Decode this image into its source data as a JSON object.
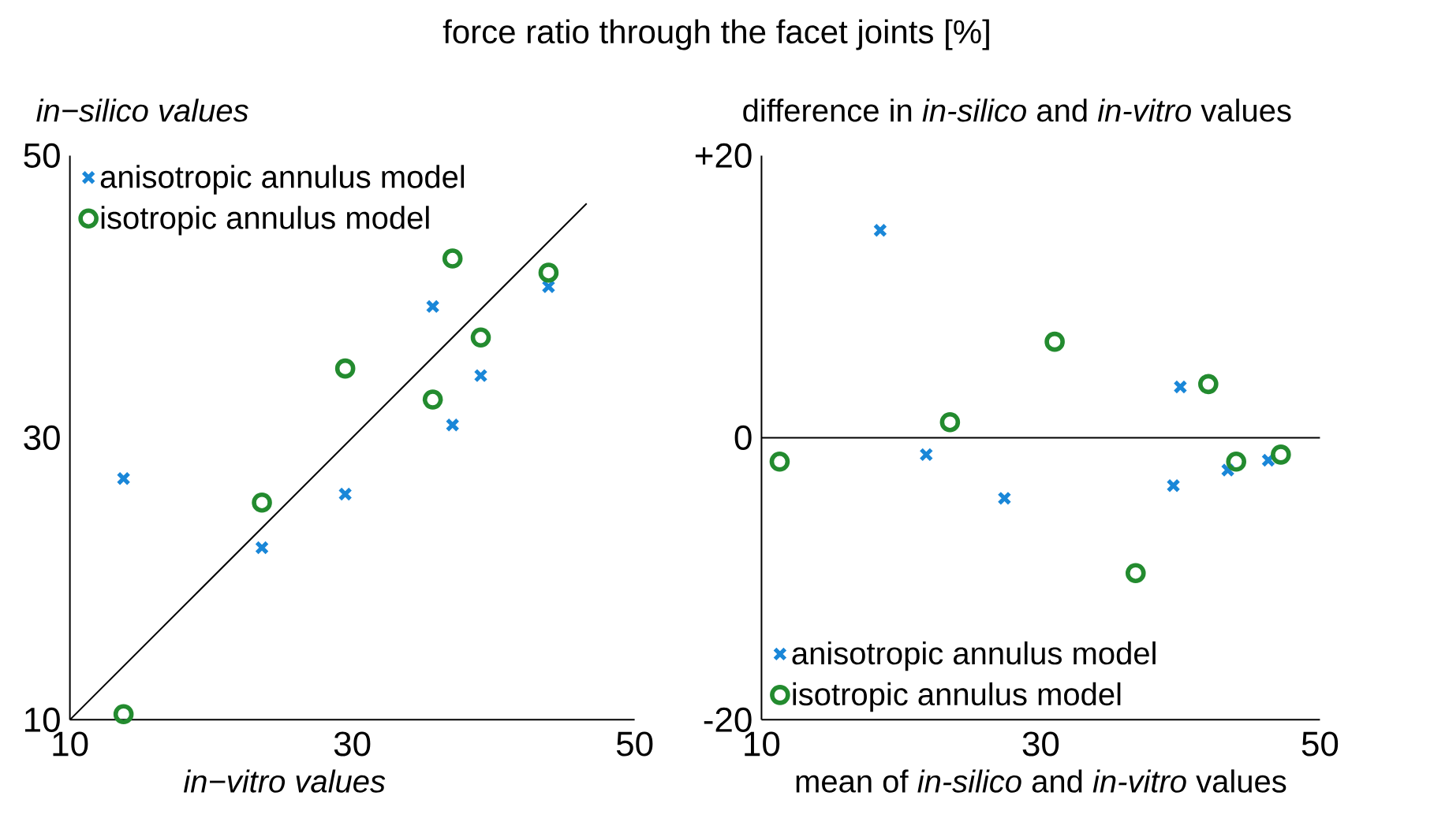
{
  "chart_data": [
    {
      "type": "scatter",
      "title": "force ratio  through the facet joints [%]",
      "ylabel": "*in−silico values*",
      "xlabel": "*in−vitro values*",
      "xlim": [
        10,
        50
      ],
      "ylim": [
        10,
        50
      ],
      "xticks": [
        10,
        30,
        50
      ],
      "yticks": [
        10,
        30,
        50
      ],
      "legend": "top left",
      "series": [
        {
          "name": "anisotropic annulus model",
          "color": "#1a87d8",
          "marker": "cross",
          "x": [
            13.8,
            23.6,
            29.5,
            35.7,
            37.1,
            39.1,
            43.9
          ],
          "values": [
            27.1,
            22.2,
            26.0,
            39.3,
            30.9,
            34.4,
            40.7
          ]
        },
        {
          "name": "isotropic annulus model",
          "color": "#238b2f",
          "marker": "circle",
          "x": [
            13.8,
            23.6,
            29.5,
            35.7,
            37.1,
            39.1,
            43.9
          ],
          "values": [
            10.4,
            25.4,
            34.9,
            32.7,
            42.7,
            37.1,
            41.7
          ]
        },
        {
          "type": "line",
          "color": "#000000",
          "line_style": "solid",
          "x": [
            10,
            46.6
          ],
          "values": [
            10,
            46.6
          ]
        }
      ]
    },
    {
      "type": "scatter",
      "ylabel": "difference in *in-silico* and *in-vitro* values",
      "xlabel": "mean of *in-silico* and *in-vitro* values",
      "xlim": [
        10,
        50
      ],
      "ylim": [
        -20,
        20
      ],
      "xticks": [
        10,
        30,
        50
      ],
      "yticks": [
        {
          "value": 20,
          "label": "+20"
        },
        0,
        -20
      ],
      "legend": "bottom left",
      "ref_lines": [
        {
          "axis": "y",
          "value": 0
        }
      ],
      "series": [
        {
          "name": "anisotropic annulus model",
          "color": "#1a87d8",
          "marker": "cross",
          "x": [
            18.5,
            21.8,
            27.4,
            39.5,
            40.0,
            43.4,
            46.3
          ],
          "values": [
            14.7,
            -1.2,
            -4.3,
            -3.4,
            3.6,
            -2.3,
            -1.6
          ]
        },
        {
          "name": "isotropic annulus model",
          "color": "#238b2f",
          "marker": "circle",
          "x": [
            11.3,
            23.5,
            31.0,
            36.8,
            42.0,
            44.0,
            47.2
          ],
          "values": [
            -1.7,
            1.1,
            6.8,
            -9.6,
            3.8,
            -1.7,
            -1.2
          ]
        }
      ]
    }
  ]
}
